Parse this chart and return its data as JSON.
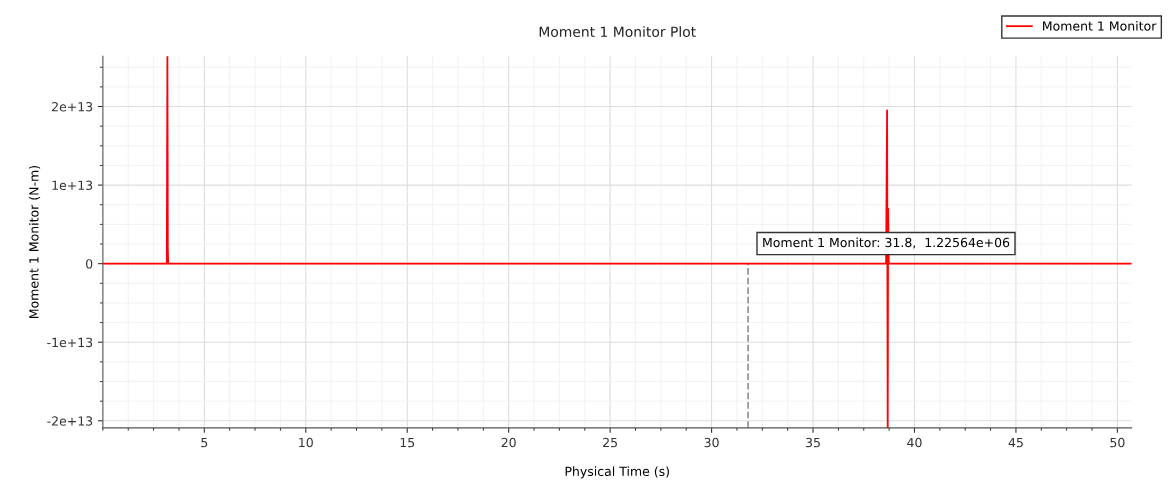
{
  "chart_data": {
    "type": "line",
    "title": "Moment 1 Monitor Plot",
    "xlabel": "Physical Time (s)",
    "ylabel": "Moment 1 Monitor (N-m)",
    "series": [
      {
        "name": "Moment 1 Monitor",
        "color": "#ff0000",
        "x": [
          0,
          3.15,
          3.18,
          3.2,
          3.22,
          38.6,
          38.65,
          38.68,
          38.7,
          38.73,
          50.7
        ],
        "values": [
          0,
          0,
          26400000000000.0,
          2000000000000.0,
          0,
          0,
          19500000000000.0,
          -20900000000000.0,
          7000000000000.0,
          0,
          0
        ]
      }
    ],
    "annotations": [
      {
        "text": "Moment 1 Monitor: 31.8,  1.22564e+06",
        "x": 31.8,
        "y": 1225640.0
      }
    ],
    "ref_lines": [
      {
        "axis": "x",
        "value": 31.8,
        "color": "#999999",
        "line_style": "dashed"
      }
    ],
    "xlim": [
      0,
      50.7
    ],
    "ylim": [
      -20900000000000.0,
      26400000000000.0
    ],
    "xticks": [
      5,
      10,
      15,
      20,
      25,
      30,
      35,
      40,
      45,
      50
    ],
    "yticks": [
      {
        "value": -20000000000000.0,
        "label": "-2e+13"
      },
      {
        "value": -10000000000000.0,
        "label": "-1e+13"
      },
      0,
      {
        "value": 10000000000000.0,
        "label": "1e+13"
      },
      {
        "value": 20000000000000.0,
        "label": "2e+13"
      }
    ],
    "grid": true,
    "legend": "top right",
    "marker": "none",
    "line_style": "solid"
  }
}
